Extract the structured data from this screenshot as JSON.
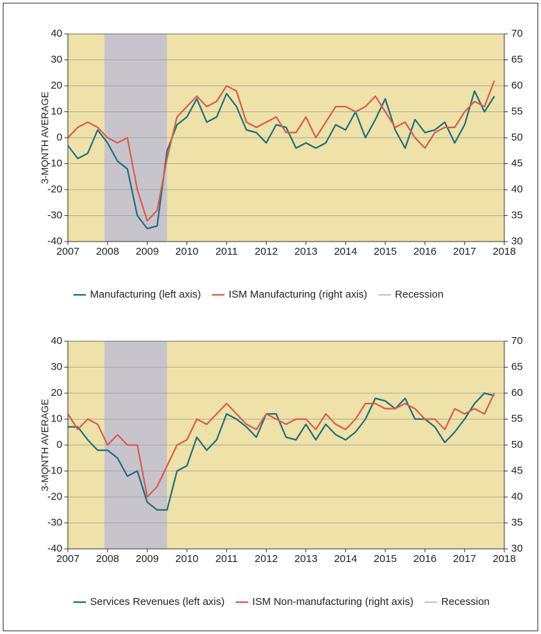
{
  "chart_data": [
    {
      "type": "line",
      "ylabel": "3-MONTH AVERAGE",
      "x": [
        2007.0,
        2007.25,
        2007.5,
        2007.75,
        2008.0,
        2008.25,
        2008.5,
        2008.75,
        2009.0,
        2009.25,
        2009.5,
        2009.75,
        2010.0,
        2010.25,
        2010.5,
        2010.75,
        2011.0,
        2011.25,
        2011.5,
        2011.75,
        2012.0,
        2012.25,
        2012.5,
        2012.75,
        2013.0,
        2013.25,
        2013.5,
        2013.75,
        2014.0,
        2014.25,
        2014.5,
        2014.75,
        2015.0,
        2015.25,
        2015.5,
        2015.75,
        2016.0,
        2016.25,
        2016.5,
        2016.75,
        2017.0,
        2017.25,
        2017.5,
        2017.75
      ],
      "series": [
        {
          "name": "Manufacturing (left axis)",
          "color": "#1e6e7e",
          "values": [
            -3,
            -8,
            -6,
            3,
            -2,
            -9,
            -12,
            -30,
            -35,
            -34,
            -5,
            5,
            8,
            15,
            6,
            8,
            17,
            12,
            3,
            2,
            -2,
            5,
            4,
            -4,
            -2,
            -4,
            -2,
            5,
            3,
            10,
            0,
            7,
            15,
            3,
            -4,
            7,
            2,
            3,
            6,
            -2,
            5,
            18,
            10,
            16
          ]
        },
        {
          "name": "ISM Manufacturing (right axis)",
          "color": "#d95c4f",
          "axis": "y2",
          "values": [
            50,
            52,
            53,
            52,
            50,
            49,
            50,
            40,
            34,
            36,
            46,
            54,
            56,
            58,
            56,
            57,
            60,
            59,
            53,
            52,
            53,
            54,
            51,
            51,
            54,
            50,
            53,
            56,
            56,
            55,
            56,
            58,
            55,
            52,
            53,
            50,
            48,
            51,
            52,
            52,
            55,
            57,
            56,
            61
          ]
        }
      ],
      "shade": {
        "name": "Recession",
        "color": "#c8c4cc",
        "x": [
          2007.92,
          2009.5
        ]
      },
      "xlim": [
        2007,
        2018
      ],
      "xticks": [
        2007,
        2008,
        2009,
        2010,
        2011,
        2012,
        2013,
        2014,
        2015,
        2016,
        2017,
        2018
      ],
      "ylim": [
        -40,
        40
      ],
      "yticks": [
        -40,
        -30,
        -20,
        -10,
        0,
        10,
        20,
        30,
        40
      ],
      "y2lim": [
        30,
        70
      ],
      "y2ticks": [
        30,
        35,
        40,
        45,
        50,
        55,
        60,
        65,
        70
      ],
      "grid": true
    },
    {
      "type": "line",
      "ylabel": "3-MONTH AVERAGE",
      "x": [
        2007.0,
        2007.25,
        2007.5,
        2007.75,
        2008.0,
        2008.25,
        2008.5,
        2008.75,
        2009.0,
        2009.25,
        2009.5,
        2009.75,
        2010.0,
        2010.25,
        2010.5,
        2010.75,
        2011.0,
        2011.25,
        2011.5,
        2011.75,
        2012.0,
        2012.25,
        2012.5,
        2012.75,
        2013.0,
        2013.25,
        2013.5,
        2013.75,
        2014.0,
        2014.25,
        2014.5,
        2014.75,
        2015.0,
        2015.25,
        2015.5,
        2015.75,
        2016.0,
        2016.25,
        2016.5,
        2016.75,
        2017.0,
        2017.25,
        2017.5,
        2017.75
      ],
      "series": [
        {
          "name": "Services Revenues (left axis)",
          "color": "#1e6e7e",
          "values": [
            7,
            7,
            2,
            -2,
            -2,
            -5,
            -12,
            -10,
            -22,
            -25,
            -25,
            -10,
            -8,
            3,
            -2,
            2,
            12,
            10,
            7,
            3,
            12,
            12,
            3,
            2,
            8,
            2,
            8,
            4,
            2,
            5,
            10,
            18,
            17,
            14,
            18,
            10,
            10,
            7,
            1,
            5,
            10,
            16,
            20,
            19
          ]
        },
        {
          "name": "ISM Non-manufacturing (right axis)",
          "color": "#d95c4f",
          "axis": "y2",
          "values": [
            56,
            53,
            55,
            54,
            50,
            52,
            50,
            50,
            40,
            42,
            46,
            50,
            51,
            55,
            54,
            56,
            58,
            56,
            54,
            53,
            56,
            55,
            54,
            55,
            55,
            53,
            56,
            54,
            53,
            55,
            58,
            58,
            57,
            57,
            58,
            57,
            55,
            55,
            53,
            57,
            56,
            57,
            56,
            60
          ]
        }
      ],
      "shade": {
        "name": "Recession",
        "color": "#c8c4cc",
        "x": [
          2007.92,
          2009.5
        ]
      },
      "xlim": [
        2007,
        2018
      ],
      "xticks": [
        2007,
        2008,
        2009,
        2010,
        2011,
        2012,
        2013,
        2014,
        2015,
        2016,
        2017,
        2018
      ],
      "ylim": [
        -40,
        40
      ],
      "yticks": [
        -40,
        -30,
        -20,
        -10,
        0,
        10,
        20,
        30,
        40
      ],
      "y2lim": [
        30,
        70
      ],
      "y2ticks": [
        30,
        35,
        40,
        45,
        50,
        55,
        60,
        65,
        70
      ],
      "grid": true
    }
  ]
}
